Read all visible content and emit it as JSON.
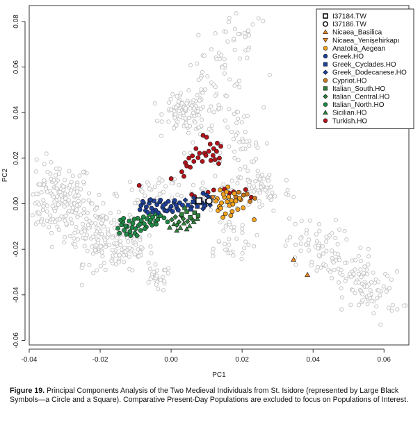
{
  "chart_data": {
    "type": "scatter",
    "title": "",
    "xlabel": "PC1",
    "ylabel": "PC2",
    "xlim": [
      -0.04,
      0.067
    ],
    "ylim": [
      -0.062,
      0.087
    ],
    "xticks": [
      "-0.04",
      "-0.02",
      "0.00",
      "0.02",
      "0.04",
      "0.06"
    ],
    "xtick_values": [
      -0.04,
      -0.02,
      0.0,
      0.02,
      0.04,
      0.06
    ],
    "yticks": [
      "-0.06",
      "-0.04",
      "-0.02",
      "0.00",
      "0.02",
      "0.04",
      "0.06",
      "0.08"
    ],
    "ytick_values": [
      -0.06,
      -0.04,
      -0.02,
      0.0,
      0.02,
      0.04,
      0.06,
      0.08
    ],
    "legend_position": "top-right",
    "background_clouds": [
      {
        "cx": -0.032,
        "cy": 0.002,
        "sx": 0.005,
        "sy": 0.008,
        "n": 170
      },
      {
        "cx": -0.02,
        "cy": -0.012,
        "sx": 0.005,
        "sy": 0.007,
        "n": 130
      },
      {
        "cx": -0.013,
        "cy": -0.02,
        "sx": 0.004,
        "sy": 0.005,
        "n": 70
      },
      {
        "cx": -0.004,
        "cy": -0.033,
        "sx": 0.002,
        "sy": 0.003,
        "n": 25
      },
      {
        "cx": 0.004,
        "cy": 0.04,
        "sx": 0.003,
        "sy": 0.004,
        "n": 90
      },
      {
        "cx": 0.012,
        "cy": 0.047,
        "sx": 0.005,
        "sy": 0.012,
        "n": 70
      },
      {
        "cx": 0.02,
        "cy": 0.022,
        "sx": 0.003,
        "sy": 0.01,
        "n": 45
      },
      {
        "cx": 0.026,
        "cy": 0.006,
        "sx": 0.004,
        "sy": 0.005,
        "n": 50
      },
      {
        "cx": 0.02,
        "cy": 0.074,
        "sx": 0.004,
        "sy": 0.008,
        "n": 30
      },
      {
        "cx": 0.009,
        "cy": 0.005,
        "sx": 0.006,
        "sy": 0.004,
        "n": 45
      },
      {
        "cx": 0.016,
        "cy": -0.016,
        "sx": 0.004,
        "sy": 0.006,
        "n": 35
      },
      {
        "cx": 0.04,
        "cy": -0.018,
        "sx": 0.004,
        "sy": 0.006,
        "n": 55
      },
      {
        "cx": 0.05,
        "cy": -0.03,
        "sx": 0.004,
        "sy": 0.005,
        "n": 60
      },
      {
        "cx": 0.057,
        "cy": -0.04,
        "sx": 0.004,
        "sy": 0.005,
        "n": 55
      },
      {
        "cx": -0.004,
        "cy": 0.006,
        "sx": 0.004,
        "sy": 0.003,
        "n": 25
      }
    ],
    "series": [
      {
        "name": "I37184.TW",
        "marker": "square",
        "filled": false,
        "color": "#000000",
        "size": 1.4,
        "x": [
          0.0078
        ],
        "y": [
          0.0013
        ]
      },
      {
        "name": "I37186.TW",
        "marker": "circle",
        "filled": false,
        "color": "#000000",
        "size": 1.4,
        "x": [
          0.0107
        ],
        "y": [
          0.0012
        ]
      },
      {
        "name": "Nicaea_Basilica",
        "marker": "triangle-up",
        "filled": true,
        "color": "#f08a1c",
        "x": [
          0.0345,
          0.0384
        ],
        "y": [
          -0.0245,
          -0.0312
        ]
      },
      {
        "name": "Nicaea_Yenişehirkapı",
        "marker": "triangle-down",
        "filled": true,
        "color": "#f08a1c",
        "x": [
          0.0118
        ],
        "y": [
          0.0028
        ]
      },
      {
        "name": "Anatolia_Aegean",
        "marker": "circle",
        "filled": true,
        "color": "#f2a21d",
        "x": [
          0.013,
          0.0136,
          0.0142,
          0.015,
          0.0158,
          0.0164,
          0.017,
          0.0132,
          0.014,
          0.0147,
          0.0153,
          0.0162,
          0.0174,
          0.0182,
          0.0188,
          0.0138,
          0.0156,
          0.0168,
          0.0178,
          0.0193,
          0.0126,
          0.0146,
          0.016,
          0.0172,
          0.0203,
          0.0234
        ],
        "y": [
          0.0022,
          -0.0012,
          0.0004,
          0.0028,
          0.0009,
          -0.0008,
          0.0014,
          -0.003,
          -0.002,
          0.0042,
          -0.0044,
          0.003,
          -0.0002,
          0.0012,
          -0.0025,
          0.006,
          0.0052,
          -0.0052,
          0.0045,
          0.0024,
          0.0012,
          -0.006,
          0.0074,
          -0.0034,
          -0.0018,
          -0.007
        ]
      },
      {
        "name": "Greek.HO",
        "marker": "circle",
        "filled": true,
        "color": "#1d3f96",
        "x": [
          -0.0085,
          -0.0078,
          -0.007,
          -0.0062,
          -0.0055,
          -0.0048,
          -0.004,
          -0.0032,
          -0.0024,
          -0.0016,
          -0.0008,
          0.0,
          0.0008,
          0.0016,
          0.0024,
          0.0032,
          -0.0088,
          -0.0072,
          -0.006,
          -0.0044,
          -0.003,
          -0.0018,
          -0.0004,
          0.001,
          0.002,
          0.009,
          0.01,
          0.0106,
          0.0094,
          -0.0066,
          -0.0052,
          -0.0036,
          -0.0022,
          -0.0012,
          0.0004,
          0.0014,
          -0.008,
          -0.0058
        ],
        "y": [
          -0.0008,
          0.0004,
          -0.0014,
          0.0002,
          -0.002,
          0.0012,
          -0.0004,
          0.0008,
          -0.0016,
          0.0,
          0.001,
          -0.0012,
          0.0006,
          -0.0018,
          0.0004,
          -0.0006,
          -0.0026,
          -0.003,
          0.0016,
          -0.0028,
          0.0016,
          -0.003,
          -0.0024,
          0.0014,
          -0.0028,
          0.0046,
          0.0038,
          0.0028,
          -0.001,
          -0.0038,
          -0.0036,
          -0.004,
          -0.0008,
          -0.0032,
          -0.0034,
          -0.0006,
          0.001,
          0.0018
        ]
      },
      {
        "name": "Greek_Cyclades.HO",
        "marker": "square",
        "filled": true,
        "color": "#1d3f96",
        "x": [
          0.0048,
          0.0062,
          0.0074,
          0.0086,
          0.0096,
          0.0056,
          0.0082,
          0.0102
        ],
        "y": [
          -0.0006,
          0.0008,
          -0.0012,
          0.0004,
          -0.0004,
          -0.0024,
          0.0018,
          0.001
        ]
      },
      {
        "name": "Greek_Dodecanese.HO",
        "marker": "diamond",
        "filled": true,
        "color": "#1d3f96",
        "x": [
          0.004,
          0.0058,
          0.007,
          0.009,
          0.011,
          0.0064
        ],
        "y": [
          0.0016,
          -0.0014,
          0.0002,
          -0.0022,
          -0.0006,
          0.0026
        ]
      },
      {
        "name": "Cypriot.HO",
        "marker": "circle",
        "filled": true,
        "color": "#c8781c",
        "x": [
          0.0182,
          0.0196,
          0.0204,
          0.0222,
          0.0236,
          0.0214,
          0.019
        ],
        "y": [
          0.003,
          0.0018,
          0.0038,
          0.001,
          0.0024,
          0.0042,
          0.005
        ]
      },
      {
        "name": "Italian_South.HO",
        "marker": "square",
        "filled": true,
        "color": "#2f7f3a",
        "x": [
          0.003,
          0.0044,
          0.0054,
          0.0066,
          0.0076,
          0.0038
        ],
        "y": [
          -0.0046,
          -0.0034,
          -0.006,
          -0.004,
          -0.0052,
          -0.0018
        ]
      },
      {
        "name": "Italian_Central.HO",
        "marker": "diamond",
        "filled": true,
        "color": "#2f7f3a",
        "x": [
          0.0002,
          0.0012,
          0.0022,
          0.0034,
          0.0046,
          0.006,
          0.0016,
          0.0028
        ],
        "y": [
          -0.007,
          -0.0058,
          -0.008,
          -0.0066,
          -0.0078,
          -0.007,
          -0.0094,
          -0.0052
        ]
      },
      {
        "name": "Italian_North.HO",
        "marker": "circle",
        "filled": true,
        "color": "#1f8a46",
        "x": [
          -0.015,
          -0.014,
          -0.0132,
          -0.0124,
          -0.0116,
          -0.0108,
          -0.01,
          -0.0092,
          -0.0084,
          -0.0076,
          -0.0068,
          -0.006,
          -0.0052,
          -0.0044,
          -0.0036,
          -0.0146,
          -0.0136,
          -0.0126,
          -0.0118,
          -0.011,
          -0.0102,
          -0.0094,
          -0.0086,
          -0.0078,
          -0.007,
          -0.0062,
          -0.0054,
          -0.0046,
          -0.0038,
          -0.003,
          -0.0142,
          -0.0128,
          -0.0114,
          -0.0104,
          -0.0088,
          -0.0074,
          -0.0058,
          -0.0042,
          -0.002,
          -0.001,
          -0.0134,
          -0.0096
        ],
        "y": [
          -0.0108,
          -0.0092,
          -0.0116,
          -0.01,
          -0.0122,
          -0.0086,
          -0.011,
          -0.0096,
          -0.0074,
          -0.0088,
          -0.0066,
          -0.0082,
          -0.006,
          -0.0078,
          -0.0056,
          -0.013,
          -0.008,
          -0.0134,
          -0.0076,
          -0.0104,
          -0.013,
          -0.0064,
          -0.0118,
          -0.0058,
          -0.0102,
          -0.0048,
          -0.0094,
          -0.0044,
          -0.007,
          -0.0052,
          -0.0072,
          -0.0098,
          -0.014,
          -0.0068,
          -0.009,
          -0.011,
          -0.0072,
          -0.009,
          -0.0062,
          -0.008,
          -0.0064,
          -0.014
        ]
      },
      {
        "name": "Sicilian.HO",
        "marker": "triangle-up",
        "filled": true,
        "color": "#2f7f3a",
        "x": [
          -0.0004,
          0.0008,
          0.0026,
          0.0036,
          0.0052,
          0.0064,
          0.0074,
          0.0016,
          0.0044
        ],
        "y": [
          -0.0104,
          -0.009,
          -0.0106,
          -0.0086,
          -0.0098,
          -0.008,
          -0.0066,
          -0.0118,
          -0.0112
        ]
      },
      {
        "name": "Turkish.HO",
        "marker": "circle",
        "filled": true,
        "color": "#b3121a",
        "x": [
          0.009,
          0.01,
          0.011,
          0.012,
          0.013,
          0.014,
          0.0094,
          0.0106,
          0.0118,
          0.0128,
          0.0136,
          0.007,
          0.008,
          0.006,
          0.005,
          0.004,
          0.0064,
          0.0076,
          0.0088,
          0.0098,
          0.0112,
          0.0124,
          0.0134,
          0.0054,
          0.0044,
          0.003,
          0.0036,
          0.015,
          0.0164,
          0.0176,
          0.021,
          0.0226,
          -0.009,
          0.0,
          0.0058,
          0.0066,
          0.012,
          0.0104
        ],
        "y": [
          0.03,
          0.0292,
          0.0262,
          0.0242,
          0.0266,
          0.0252,
          0.0222,
          0.023,
          0.0212,
          0.023,
          0.02,
          0.0242,
          0.0222,
          0.021,
          0.02,
          0.018,
          0.0186,
          0.0202,
          0.0186,
          0.0212,
          0.019,
          0.0194,
          0.0176,
          0.016,
          0.0166,
          0.014,
          0.012,
          0.0064,
          0.0046,
          0.0052,
          0.0062,
          0.0028,
          0.008,
          0.011,
          0.004,
          0.0032,
          0.006,
          0.005
        ]
      }
    ]
  },
  "caption": {
    "label": "Figure 19.",
    "text": " Principal Components Analysis of the Two Medieval Individuals from St. Isidore (represented by Large Black Symbols—a Circle and a Square). Comparative Present-Day Populations are excluded to focus on Populations of Interest."
  }
}
